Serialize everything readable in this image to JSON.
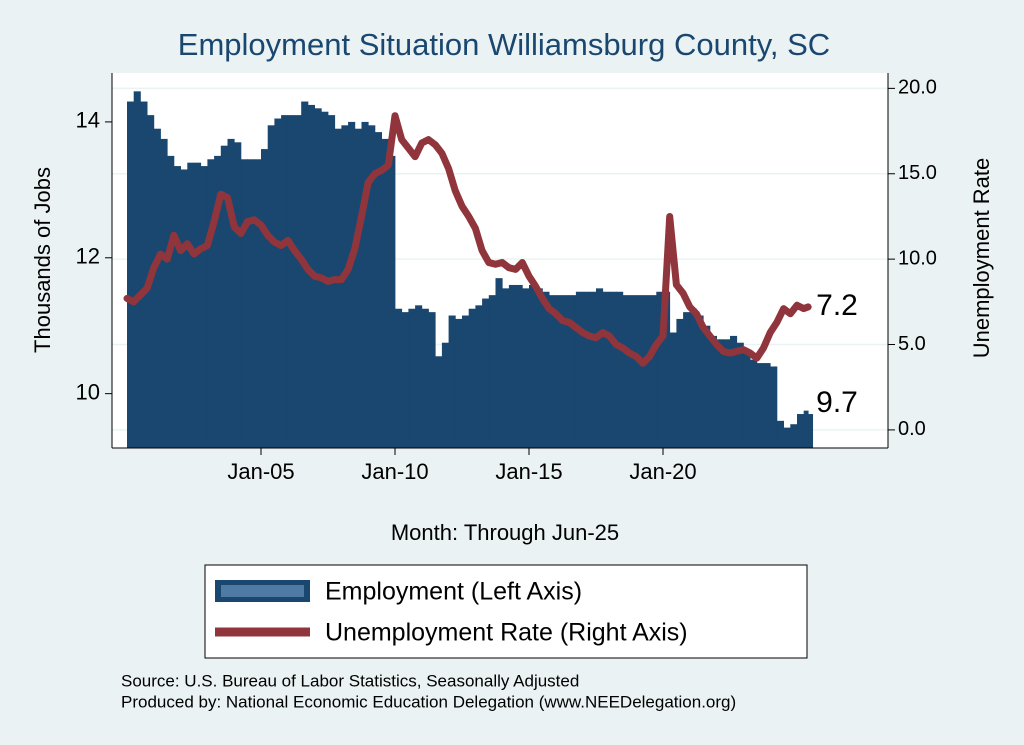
{
  "chart_data": {
    "type": "bar+line",
    "title": "Employment Situation Williamsburg  County, SC",
    "xlabel": "Month: Through Jun-25",
    "ylabel": "Thousands of Jobs",
    "y2label": "Unemployment Rate",
    "x": [
      "Jan-00",
      "Apr-00",
      "Jul-00",
      "Oct-00",
      "Jan-01",
      "Apr-01",
      "Jul-01",
      "Oct-01",
      "Jan-02",
      "Apr-02",
      "Jul-02",
      "Oct-02",
      "Jan-03",
      "Apr-03",
      "Jul-03",
      "Oct-03",
      "Jan-04",
      "Apr-04",
      "Jul-04",
      "Oct-04",
      "Jan-05",
      "Apr-05",
      "Jul-05",
      "Oct-05",
      "Jan-06",
      "Apr-06",
      "Jul-06",
      "Oct-06",
      "Jan-07",
      "Apr-07",
      "Jul-07",
      "Oct-07",
      "Jan-08",
      "Apr-08",
      "Jul-08",
      "Oct-08",
      "Jan-09",
      "Apr-09",
      "Jul-09",
      "Oct-09",
      "Jan-10",
      "Apr-10",
      "Jul-10",
      "Oct-10",
      "Jan-11",
      "Apr-11",
      "Jul-11",
      "Oct-11",
      "Jan-12",
      "Apr-12",
      "Jul-12",
      "Oct-12",
      "Jan-13",
      "Apr-13",
      "Jul-13",
      "Oct-13",
      "Jan-14",
      "Apr-14",
      "Jul-14",
      "Oct-14",
      "Jan-15",
      "Apr-15",
      "Jul-15",
      "Oct-15",
      "Jan-16",
      "Apr-16",
      "Jul-16",
      "Oct-16",
      "Jan-17",
      "Apr-17",
      "Jul-17",
      "Oct-17",
      "Jan-18",
      "Apr-18",
      "Jul-18",
      "Oct-18",
      "Jan-19",
      "Apr-19",
      "Jul-19",
      "Oct-19",
      "Jan-20",
      "Apr-20",
      "Jul-20",
      "Oct-20",
      "Jan-21",
      "Apr-21",
      "Jul-21",
      "Oct-21",
      "Jan-22",
      "Apr-22",
      "Jul-22",
      "Oct-22",
      "Jan-23",
      "Apr-23",
      "Jul-23",
      "Oct-23",
      "Jan-24",
      "Apr-24",
      "Jul-24",
      "Oct-24",
      "Jan-25",
      "Apr-25",
      "Jun-25"
    ],
    "xticks": [
      "Jan-05",
      "Jan-10",
      "Jan-15",
      "Jan-20"
    ],
    "ylim": [
      9.2,
      14.72
    ],
    "yticks": [
      10,
      12,
      14
    ],
    "y2lim": [
      -1.06,
      20.9
    ],
    "y2ticks": [
      {
        "value": 0,
        "label": "0.0"
      },
      {
        "value": 5,
        "label": "5.0"
      },
      {
        "value": 10,
        "label": "10.0"
      },
      {
        "value": 15,
        "label": "15.0"
      },
      {
        "value": 20,
        "label": "20.0"
      }
    ],
    "grid": true,
    "series": [
      {
        "name": "Employment (Left Axis)",
        "type": "bar",
        "color": "#1a476f",
        "values": [
          14.3,
          14.45,
          14.3,
          14.1,
          13.9,
          13.75,
          13.5,
          13.35,
          13.3,
          13.4,
          13.4,
          13.35,
          13.45,
          13.5,
          13.65,
          13.75,
          13.7,
          13.45,
          13.45,
          13.45,
          13.6,
          13.95,
          14.05,
          14.1,
          14.1,
          14.1,
          14.3,
          14.25,
          14.2,
          14.15,
          14.1,
          13.9,
          13.95,
          14.0,
          13.9,
          14.0,
          13.95,
          13.85,
          13.75,
          13.5,
          11.25,
          11.2,
          11.25,
          11.3,
          11.25,
          11.2,
          10.55,
          10.75,
          11.15,
          11.1,
          11.15,
          11.25,
          11.3,
          11.4,
          11.45,
          11.7,
          11.55,
          11.6,
          11.6,
          11.55,
          11.6,
          11.55,
          11.5,
          11.45,
          11.45,
          11.45,
          11.45,
          11.5,
          11.5,
          11.5,
          11.55,
          11.5,
          11.5,
          11.5,
          11.45,
          11.45,
          11.45,
          11.45,
          11.45,
          11.5,
          11.5,
          10.9,
          11.1,
          11.2,
          11.25,
          11.15,
          11.0,
          10.85,
          10.8,
          10.8,
          10.85,
          10.75,
          10.6,
          10.5,
          10.45,
          10.45,
          10.4,
          9.6,
          9.5,
          9.55,
          9.7,
          9.75,
          9.7
        ]
      },
      {
        "name": "Unemployment Rate (Right Axis)",
        "type": "line",
        "axis": "y2",
        "color": "#90353b",
        "values": [
          7.7,
          7.5,
          7.9,
          8.3,
          9.5,
          10.3,
          10.0,
          11.4,
          10.5,
          10.9,
          10.3,
          10.6,
          10.8,
          12.2,
          13.8,
          13.6,
          11.9,
          11.5,
          12.2,
          12.3,
          12.0,
          11.4,
          11.0,
          10.8,
          11.1,
          10.5,
          10.0,
          9.4,
          9.0,
          8.9,
          8.7,
          8.8,
          8.8,
          9.4,
          10.6,
          12.5,
          14.5,
          15.0,
          15.2,
          15.5,
          18.4,
          17.0,
          16.5,
          16.0,
          16.8,
          17.0,
          16.7,
          16.2,
          15.3,
          14.0,
          13.1,
          12.5,
          11.8,
          10.5,
          9.8,
          9.7,
          9.8,
          9.5,
          9.4,
          9.8,
          9.0,
          8.4,
          7.7,
          7.1,
          6.8,
          6.4,
          6.3,
          6.0,
          5.7,
          5.5,
          5.4,
          5.7,
          5.5,
          5.0,
          4.8,
          4.5,
          4.3,
          3.9,
          4.3,
          5.0,
          5.5,
          12.5,
          8.5,
          8.0,
          7.2,
          6.8,
          6.0,
          5.5,
          5.0,
          4.6,
          4.5,
          4.6,
          4.7,
          4.5,
          4.2,
          4.8,
          5.7,
          6.3,
          7.1,
          6.8,
          7.3,
          7.1,
          7.2
        ]
      }
    ],
    "notes": [
      "Source: U.S. Bureau of Labor Statistics, Seasonally Adjusted",
      "Produced by: National Economic Education Delegation (www.NEEDelegation.org)"
    ]
  }
}
